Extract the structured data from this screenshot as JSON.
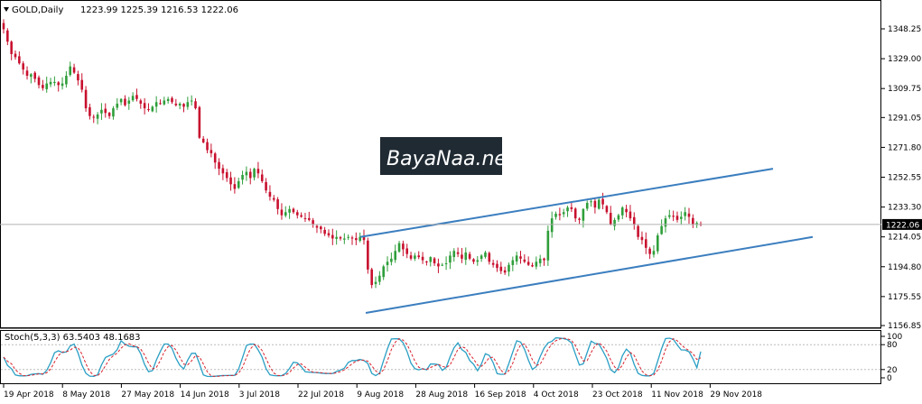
{
  "header": {
    "symbol": "GOLD,Daily",
    "ohlc": "1223.99 1225.39 1216.53 1222.06"
  },
  "price_axis": {
    "ticks": [
      "1348.25",
      "1329.00",
      "1309.75",
      "1291.05",
      "1271.80",
      "1252.55",
      "1233.30",
      "1214.05",
      "1194.80",
      "1175.55",
      "1156.85"
    ],
    "current": "1222.06"
  },
  "date_axis": {
    "ticks": [
      "19 Apr 2018",
      "8 May 2018",
      "27 May 2018",
      "14 Jun 2018",
      "3 Jul 2018",
      "22 Jul 2018",
      "9 Aug 2018",
      "28 Aug 2018",
      "16 Sep 2018",
      "4 Oct 2018",
      "23 Oct 2018",
      "11 Nov 2018",
      "29 Nov 2018"
    ]
  },
  "watermark": {
    "text": "BayaNaa.net"
  },
  "stoch": {
    "label": "Stoch(5,3,3) 63.5403 48.1683",
    "ticks": [
      "100",
      "80",
      "20",
      "0"
    ]
  },
  "colors": {
    "bull": "#2e9e3a",
    "bear": "#c8102e",
    "channel": "#3b7ebf",
    "main_line": "#2a9fc4",
    "signal_line": "#d9232e"
  },
  "chart_data": {
    "type": "candlestick",
    "title": "GOLD,Daily",
    "ylim": [
      1150,
      1360
    ],
    "last_close": 1222.06,
    "x_start": "19 Apr 2018",
    "x_end": "29 Nov 2018",
    "closes": [
      1348,
      1340,
      1332,
      1330,
      1326,
      1322,
      1318,
      1319,
      1316,
      1312,
      1310,
      1313,
      1314,
      1314,
      1312,
      1313,
      1318,
      1324,
      1320,
      1315,
      1309,
      1297,
      1292,
      1291,
      1293,
      1296,
      1294,
      1292,
      1297,
      1300,
      1303,
      1299,
      1302,
      1305,
      1303,
      1300,
      1297,
      1296,
      1298,
      1301,
      1300,
      1302,
      1303,
      1301,
      1299,
      1300,
      1298,
      1301,
      1302,
      1297,
      1278,
      1275,
      1270,
      1268,
      1262,
      1258,
      1255,
      1252,
      1248,
      1245,
      1250,
      1254,
      1256,
      1252,
      1258,
      1255,
      1250,
      1244,
      1240,
      1238,
      1232,
      1228,
      1230,
      1232,
      1230,
      1228,
      1227,
      1226,
      1225,
      1222,
      1220,
      1219,
      1216,
      1215,
      1213,
      1214,
      1213,
      1213,
      1214,
      1213,
      1212,
      1214,
      1212,
      1193,
      1183,
      1185,
      1189,
      1195,
      1198,
      1200,
      1205,
      1210,
      1206,
      1203,
      1200,
      1202,
      1201,
      1199,
      1198,
      1201,
      1197,
      1195,
      1196,
      1197,
      1202,
      1205,
      1203,
      1200,
      1204,
      1200,
      1198,
      1199,
      1202,
      1204,
      1198,
      1196,
      1194,
      1192,
      1191,
      1196,
      1199,
      1202,
      1200,
      1198,
      1196,
      1195,
      1198,
      1200,
      1199,
      1218,
      1226,
      1229,
      1228,
      1230,
      1233,
      1232,
      1226,
      1225,
      1232,
      1236,
      1237,
      1233,
      1238,
      1235,
      1230,
      1222,
      1225,
      1228,
      1233,
      1230,
      1226,
      1222,
      1214,
      1212,
      1207,
      1203,
      1205,
      1215,
      1221,
      1226,
      1228,
      1227,
      1225,
      1227,
      1230,
      1227,
      1222,
      1223,
      1222
    ],
    "channel": {
      "upper": [
        [
          "9 Aug 2018",
          1214
        ],
        [
          "end",
          1258
        ]
      ],
      "lower": [
        [
          "9 Aug 2018",
          1165
        ],
        [
          "end",
          1214
        ]
      ]
    },
    "stochastic": {
      "k_period": 5,
      "d_period": 3,
      "slowing": 3,
      "main": 63.5403,
      "signal": 48.1683,
      "ylim": [
        0,
        100
      ],
      "levels": [
        20,
        80
      ]
    }
  }
}
